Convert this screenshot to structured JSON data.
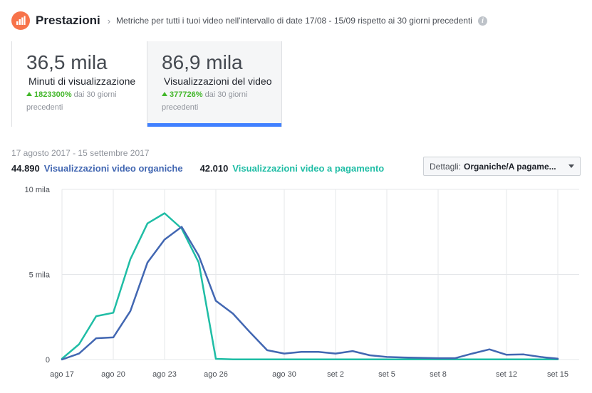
{
  "header": {
    "title": "Prestazioni",
    "subtitle": "Metriche per tutti i tuoi video nell'intervallo di date 17/08 - 15/09 rispetto ai 30 giorni precedenti",
    "logo_icon": "bar-chart-icon",
    "logo_color": "#f7734a"
  },
  "cards": [
    {
      "value": "36,5 mila",
      "label": "Minuti di visualizzazione",
      "delta": "1823300%",
      "delta_suffix": "dai 30 giorni",
      "delta_suffix2": "precedenti"
    },
    {
      "value": "86,9 mila",
      "label": "Visualizzazioni del video",
      "delta": "377726%",
      "delta_suffix": "dai 30 giorni",
      "delta_suffix2": "precedenti"
    }
  ],
  "date_range": "17 agosto 2017 - 15 settembre 2017",
  "legend": {
    "organic_total": "44.890",
    "organic_label": "Visualizzazioni video organiche",
    "paid_total": "42.010",
    "paid_label": "Visualizzazioni video a pagamento"
  },
  "dropdown": {
    "label": "Dettagli:",
    "value": "Organiche/A pagame..."
  },
  "colors": {
    "organic": "#4267b2",
    "paid": "#1fbda5",
    "accent": "#4080ff",
    "positive": "#42b72a"
  },
  "chart_data": {
    "type": "line",
    "x": [
      "ago 17",
      "ago 18",
      "ago 19",
      "ago 20",
      "ago 21",
      "ago 22",
      "ago 23",
      "ago 24",
      "ago 25",
      "ago 26",
      "ago 27",
      "ago 28",
      "ago 29",
      "ago 30",
      "ago 31",
      "set 1",
      "set 2",
      "set 3",
      "set 4",
      "set 5",
      "set 6",
      "set 7",
      "set 8",
      "set 9",
      "set 10",
      "set 11",
      "set 12",
      "set 13",
      "set 14",
      "set 15"
    ],
    "x_tick_labels": [
      "ago 17",
      "ago 20",
      "ago 23",
      "ago 26",
      "ago 30",
      "set 2",
      "set 5",
      "set 8",
      "set 12",
      "set 15"
    ],
    "y_tick_labels": [
      "10 mila",
      "5 mila",
      "0"
    ],
    "ylim": [
      0,
      10000
    ],
    "series": [
      {
        "name": "Visualizzazioni video organiche",
        "color": "#4267b2",
        "values": [
          0,
          350,
          1250,
          1300,
          2850,
          5700,
          7050,
          7800,
          6100,
          3450,
          2700,
          1600,
          550,
          350,
          450,
          450,
          350,
          500,
          250,
          150,
          120,
          100,
          80,
          80,
          350,
          600,
          280,
          300,
          150,
          50
        ]
      },
      {
        "name": "Visualizzazioni video a pagamento",
        "color": "#1fbda5",
        "values": [
          50,
          900,
          2550,
          2750,
          5900,
          8000,
          8600,
          7700,
          5700,
          40,
          10,
          10,
          10,
          10,
          10,
          10,
          10,
          10,
          10,
          10,
          10,
          10,
          10,
          10,
          10,
          10,
          10,
          10,
          10,
          10
        ]
      }
    ],
    "grid": true,
    "legend_placement": "top-left"
  }
}
